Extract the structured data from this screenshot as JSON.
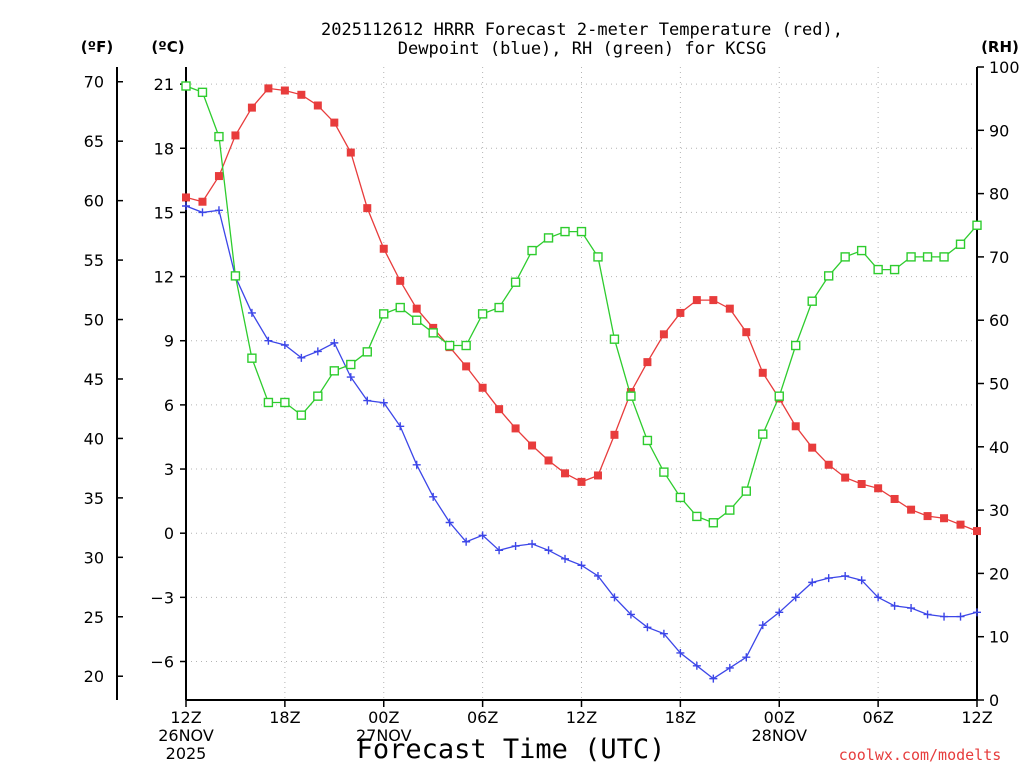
{
  "chart_data": {
    "type": "line",
    "title_line1": "2025112612 HRRR Forecast 2-meter Temperature (red),",
    "title_line2": "Dewpoint (blue), RH (green) for KCSG",
    "xlabel": "Forecast Time (UTC)",
    "credit": "coolwx.com/modelts",
    "units": {
      "f": "(ºF)",
      "c": "(ºC)",
      "rh": "(RH)"
    },
    "x_range": [
      0,
      48
    ],
    "c_range": [
      -7.8,
      21.8
    ],
    "f_range": [
      18,
      71.24
    ],
    "rh_range": [
      0,
      100
    ],
    "c_ticks": [
      21,
      18,
      15,
      12,
      9,
      6,
      3,
      0,
      -3,
      -6
    ],
    "f_ticks": [
      70,
      65,
      60,
      55,
      50,
      45,
      40,
      35,
      30,
      25,
      20
    ],
    "rh_ticks": [
      100,
      90,
      80,
      70,
      60,
      50,
      40,
      30,
      20,
      10,
      0
    ],
    "c_tick_labels": [
      "21",
      "18",
      "15",
      "12",
      "9",
      "6",
      "3",
      "0",
      "−3",
      "−6"
    ],
    "f_tick_labels": [
      "70",
      "65",
      "60",
      "55",
      "50",
      "45",
      "40",
      "35",
      "30",
      "25",
      "20"
    ],
    "rh_tick_labels": [
      "100",
      "90",
      "80",
      "70",
      "60",
      "50",
      "40",
      "30",
      "20",
      "10",
      "0"
    ],
    "x_ticks": [
      {
        "hour": 0,
        "label": "12Z",
        "sub1": "26NOV",
        "sub2": "2025"
      },
      {
        "hour": 6,
        "label": "18Z"
      },
      {
        "hour": 12,
        "label": "00Z",
        "sub1": "27NOV"
      },
      {
        "hour": 18,
        "label": "06Z"
      },
      {
        "hour": 24,
        "label": "12Z"
      },
      {
        "hour": 30,
        "label": "18Z"
      },
      {
        "hour": 36,
        "label": "00Z",
        "sub1": "28NOV"
      },
      {
        "hour": 42,
        "label": "06Z"
      },
      {
        "hour": 48,
        "label": "12Z"
      }
    ],
    "series": [
      {
        "name": "Temperature",
        "axis": "c",
        "color": "#e83c3c",
        "marker": "filled-square",
        "values": [
          15.7,
          15.5,
          16.7,
          18.6,
          19.9,
          20.8,
          20.7,
          20.5,
          20.0,
          19.2,
          17.8,
          15.2,
          13.3,
          11.8,
          10.5,
          9.6,
          8.7,
          7.8,
          6.8,
          5.8,
          4.9,
          4.1,
          3.4,
          2.8,
          2.4,
          2.7,
          4.6,
          6.6,
          8.0,
          9.3,
          10.3,
          10.9,
          10.9,
          10.5,
          9.4,
          7.5,
          6.3,
          5.0,
          4.0,
          3.2,
          2.6,
          2.3,
          2.1,
          1.6,
          1.1,
          0.8,
          0.7,
          0.4,
          0.1
        ]
      },
      {
        "name": "Dewpoint",
        "axis": "c",
        "color": "#3c46e8",
        "marker": "plus",
        "values": [
          15.3,
          15.0,
          15.1,
          12.0,
          10.3,
          9.0,
          8.8,
          8.2,
          8.5,
          8.9,
          7.3,
          6.2,
          6.1,
          5.0,
          3.2,
          1.7,
          0.5,
          -0.4,
          -0.1,
          -0.8,
          -0.6,
          -0.5,
          -0.8,
          -1.2,
          -1.5,
          -2.0,
          -3.0,
          -3.8,
          -4.4,
          -4.7,
          -5.6,
          -6.2,
          -6.8,
          -6.3,
          -5.8,
          -4.3,
          -3.7,
          -3.0,
          -2.3,
          -2.1,
          -2.0,
          -2.2,
          -3.0,
          -3.4,
          -3.5,
          -3.8,
          -3.9,
          -3.9,
          -3.7
        ]
      },
      {
        "name": "RH",
        "axis": "rh",
        "color": "#2ecc2e",
        "marker": "open-square",
        "values": [
          97,
          96,
          89,
          67,
          54,
          47,
          47,
          45,
          48,
          52,
          53,
          55,
          61,
          62,
          60,
          58,
          56,
          56,
          61,
          62,
          66,
          71,
          73,
          74,
          74,
          70,
          57,
          48,
          41,
          36,
          32,
          29,
          28,
          30,
          33,
          42,
          48,
          56,
          63,
          67,
          70,
          71,
          68,
          68,
          70,
          70,
          70,
          72,
          75
        ]
      }
    ]
  }
}
